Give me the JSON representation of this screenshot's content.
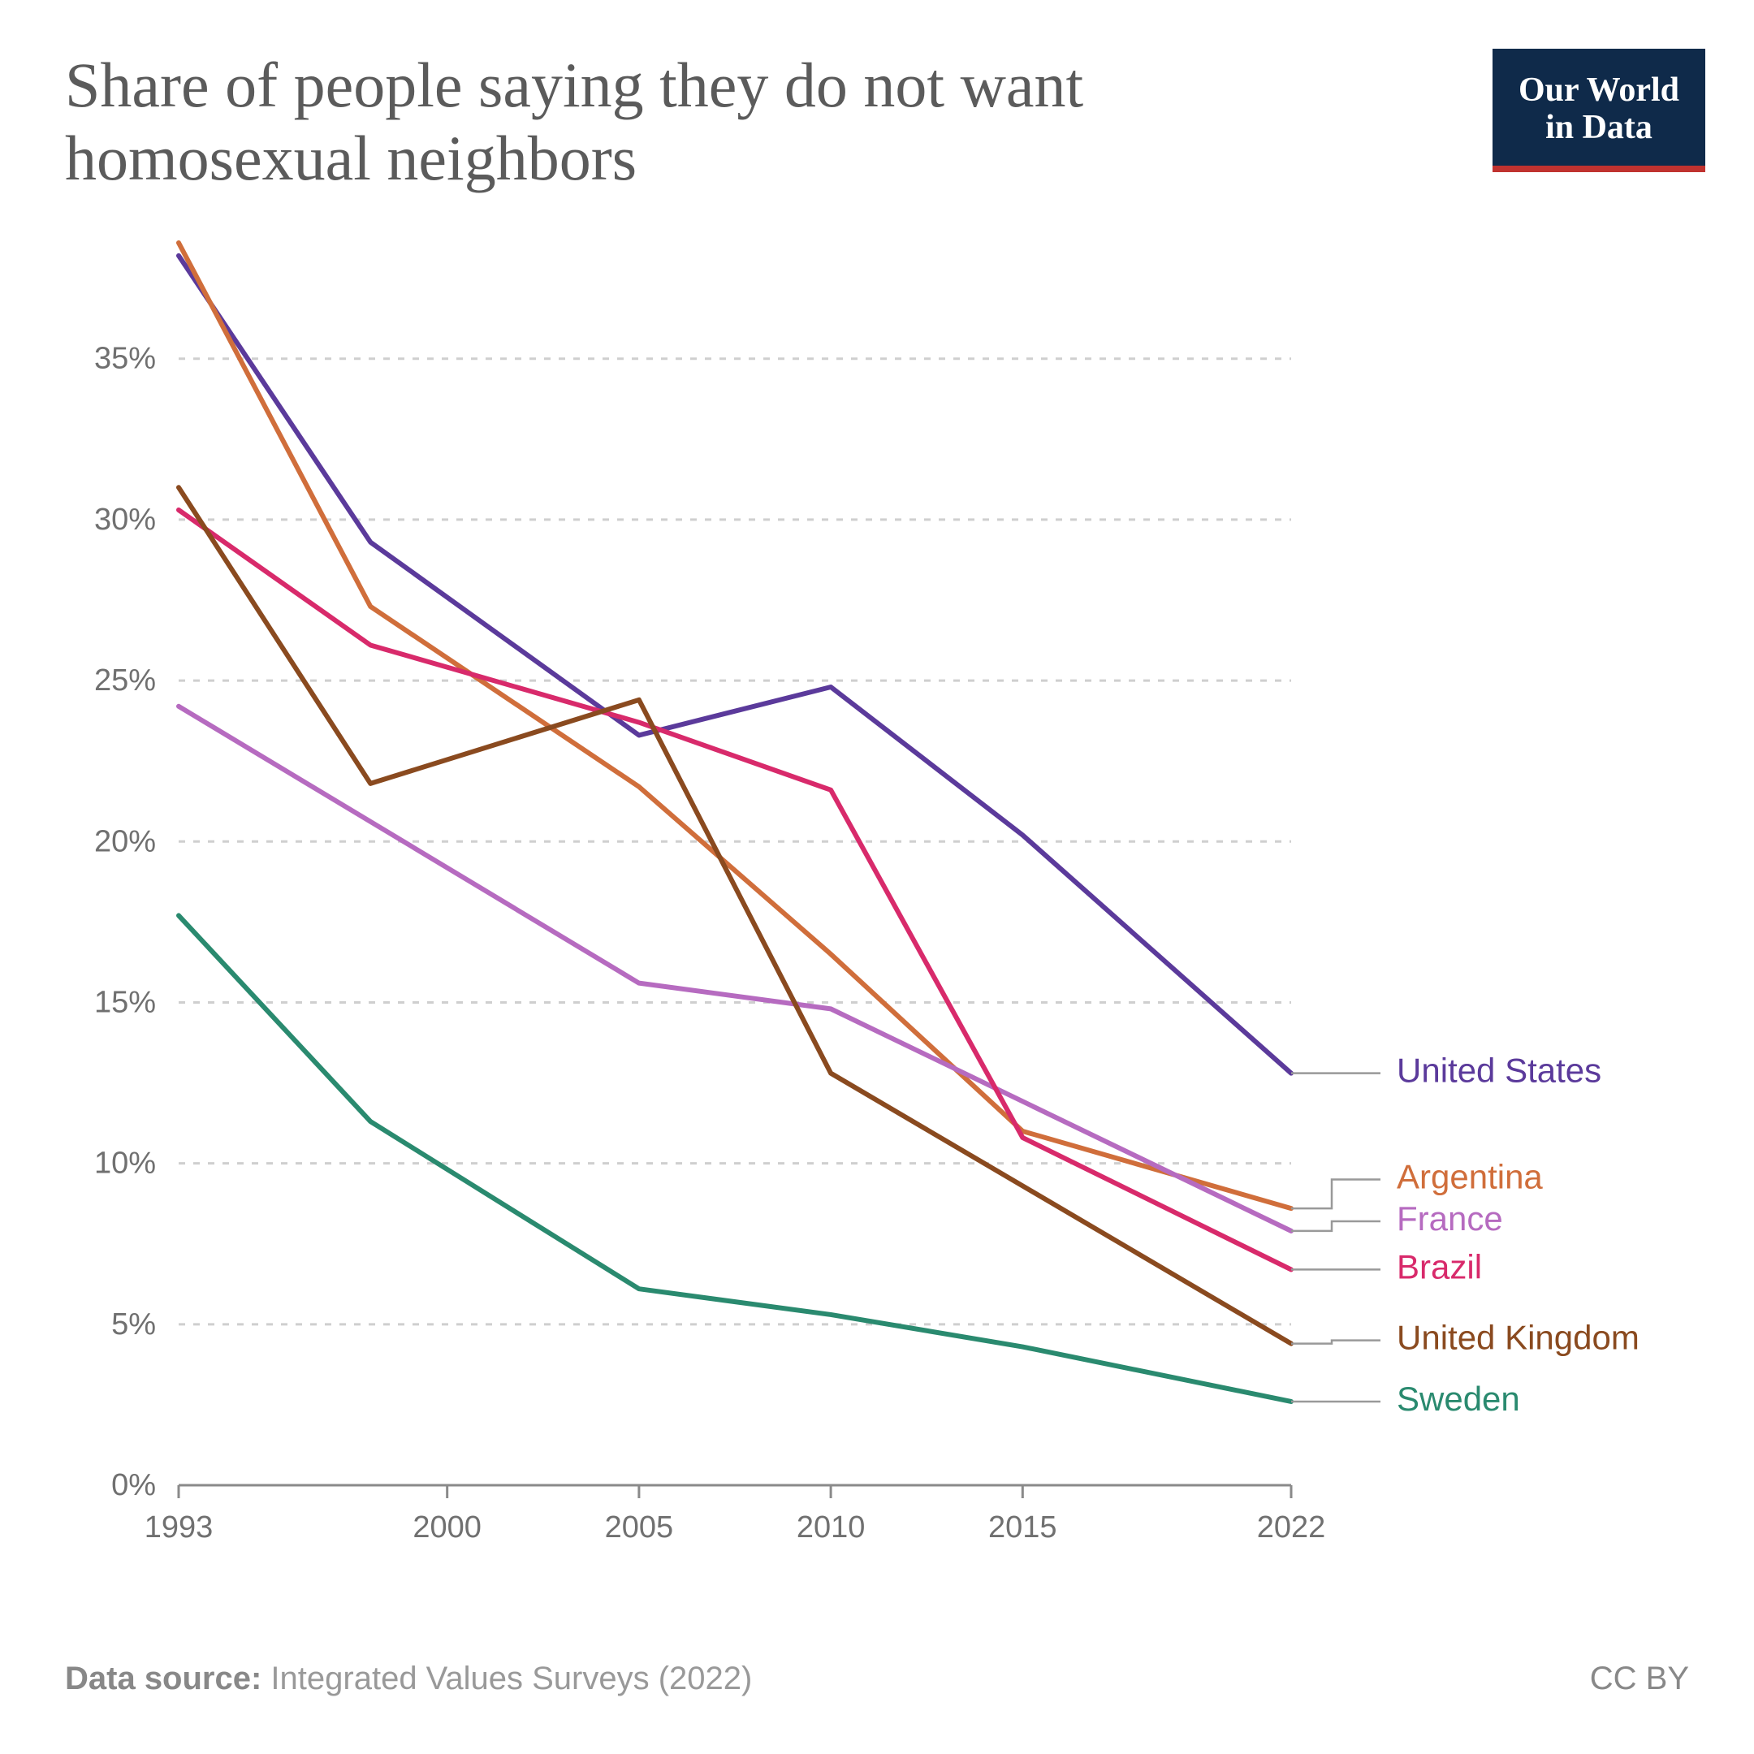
{
  "header": {
    "title": "Share of people saying they do not want homosexual neighbors",
    "logo_line1": "Our World",
    "logo_line2": "in Data"
  },
  "chart": {
    "type": "line",
    "background_color": "#ffffff",
    "grid_color": "#cfcfcf",
    "axis_color": "#8a8a8a",
    "label_color": "#707070",
    "title_fontsize": 78,
    "axis_fontsize": 38,
    "series_label_fontsize": 42,
    "line_width": 6,
    "x": {
      "ticks": [
        1993,
        2000,
        2005,
        2010,
        2015,
        2022
      ],
      "min": 1993,
      "max": 2022
    },
    "y": {
      "ticks": [
        0,
        5,
        10,
        15,
        20,
        25,
        30,
        35
      ],
      "min": 0,
      "max": 38.6,
      "suffix": "%"
    },
    "series": [
      {
        "name": "United States",
        "color": "#5b3a9b",
        "label_y": 12.8,
        "points": [
          [
            1993,
            38.2
          ],
          [
            1998,
            29.3
          ],
          [
            2005,
            23.3
          ],
          [
            2010,
            24.8
          ],
          [
            2015,
            20.2
          ],
          [
            2022,
            12.8
          ]
        ]
      },
      {
        "name": "Argentina",
        "color": "#d06e3b",
        "label_y": 9.5,
        "points": [
          [
            1993,
            38.6
          ],
          [
            1998,
            27.3
          ],
          [
            2005,
            21.7
          ],
          [
            2010,
            16.5
          ],
          [
            2015,
            11.0
          ],
          [
            2022,
            8.6
          ]
        ]
      },
      {
        "name": "France",
        "color": "#b66bc0",
        "label_y": 8.2,
        "points": [
          [
            1993,
            24.2
          ],
          [
            2005,
            15.6
          ],
          [
            2010,
            14.8
          ],
          [
            2022,
            7.9
          ]
        ]
      },
      {
        "name": "Brazil",
        "color": "#d82a6b",
        "label_y": 6.7,
        "points": [
          [
            1993,
            30.3
          ],
          [
            1998,
            26.1
          ],
          [
            2005,
            23.7
          ],
          [
            2010,
            21.6
          ],
          [
            2015,
            10.8
          ],
          [
            2022,
            6.7
          ]
        ]
      },
      {
        "name": "United Kingdom",
        "color": "#8a4a1f",
        "label_y": 4.5,
        "points": [
          [
            1993,
            31.0
          ],
          [
            1998,
            21.8
          ],
          [
            2005,
            24.4
          ],
          [
            2010,
            12.8
          ],
          [
            2022,
            4.4
          ]
        ]
      },
      {
        "name": "Sweden",
        "color": "#2a8a6f",
        "label_y": 2.6,
        "points": [
          [
            1993,
            17.7
          ],
          [
            1998,
            11.3
          ],
          [
            2005,
            6.1
          ],
          [
            2010,
            5.3
          ],
          [
            2015,
            4.3
          ],
          [
            2022,
            2.6
          ]
        ]
      }
    ]
  },
  "footer": {
    "source_label": "Data source:",
    "source_text": " Integrated Values Surveys (2022)",
    "license": "CC BY"
  }
}
